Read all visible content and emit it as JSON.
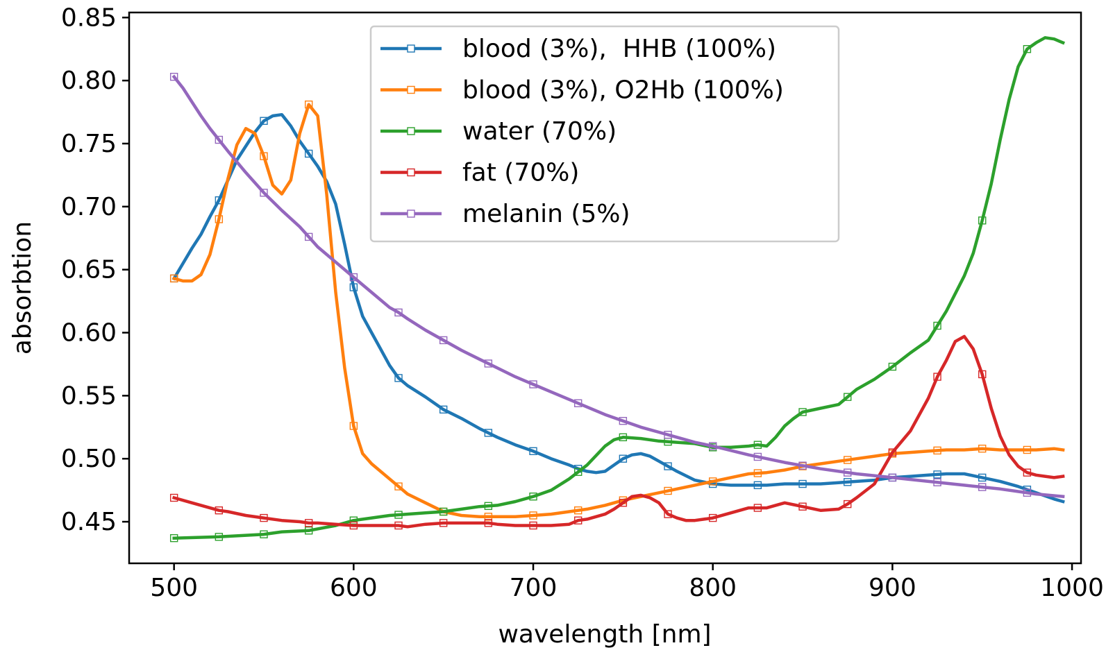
{
  "chart_data": {
    "type": "line",
    "xlabel": "wavelength [nm]",
    "ylabel": "absorbtion",
    "xlim": [
      475,
      1005
    ],
    "ylim": [
      0.417,
      0.854
    ],
    "xticks": [
      500,
      600,
      700,
      800,
      900,
      1000
    ],
    "xtick_labels": [
      "500",
      "600",
      "700",
      "800",
      "900",
      "1000"
    ],
    "yticks": [
      0.45,
      0.5,
      0.55,
      0.6,
      0.65,
      0.7,
      0.75,
      0.8,
      0.85
    ],
    "ytick_labels": [
      "0.45",
      "0.50",
      "0.55",
      "0.60",
      "0.65",
      "0.70",
      "0.75",
      "0.80",
      "0.85"
    ],
    "grid": false,
    "legend": "top-center",
    "marker_x": [
      500,
      525,
      550,
      575,
      600,
      625,
      650,
      675,
      700,
      725,
      750,
      775,
      800,
      825,
      850,
      875,
      900,
      925,
      950,
      975
    ],
    "series": [
      {
        "name": "blood (3%),  HHB (100%)",
        "color": "#1f77b4",
        "x": [
          500,
          505,
          510,
          515,
          520,
          525,
          530,
          535,
          540,
          545,
          550,
          555,
          560,
          565,
          570,
          575,
          580,
          585,
          590,
          595,
          600,
          605,
          610,
          615,
          620,
          625,
          630,
          640,
          650,
          660,
          670,
          680,
          690,
          700,
          710,
          720,
          725,
          730,
          735,
          740,
          745,
          750,
          755,
          760,
          765,
          770,
          775,
          780,
          790,
          800,
          810,
          820,
          830,
          840,
          850,
          860,
          870,
          880,
          890,
          900,
          910,
          920,
          930,
          940,
          950,
          960,
          970,
          980,
          990,
          995
        ],
        "y": [
          0.643,
          0.655,
          0.667,
          0.678,
          0.692,
          0.705,
          0.721,
          0.737,
          0.748,
          0.759,
          0.768,
          0.772,
          0.773,
          0.764,
          0.752,
          0.742,
          0.732,
          0.72,
          0.702,
          0.67,
          0.636,
          0.613,
          0.6,
          0.587,
          0.574,
          0.564,
          0.558,
          0.549,
          0.539,
          0.532,
          0.524,
          0.517,
          0.511,
          0.506,
          0.5,
          0.495,
          0.492,
          0.49,
          0.489,
          0.49,
          0.495,
          0.5,
          0.503,
          0.504,
          0.502,
          0.498,
          0.494,
          0.49,
          0.483,
          0.48,
          0.479,
          0.479,
          0.479,
          0.48,
          0.48,
          0.48,
          0.481,
          0.482,
          0.483,
          0.485,
          0.486,
          0.487,
          0.488,
          0.488,
          0.485,
          0.482,
          0.478,
          0.473,
          0.468,
          0.466
        ]
      },
      {
        "name": "blood (3%), O2Hb (100%)",
        "color": "#ff7f0e",
        "x": [
          500,
          505,
          510,
          515,
          520,
          525,
          530,
          535,
          540,
          545,
          550,
          555,
          560,
          565,
          570,
          575,
          580,
          585,
          590,
          595,
          600,
          605,
          610,
          620,
          630,
          640,
          650,
          660,
          670,
          680,
          690,
          700,
          710,
          720,
          730,
          740,
          750,
          760,
          770,
          780,
          790,
          800,
          810,
          820,
          830,
          840,
          850,
          860,
          870,
          880,
          890,
          900,
          910,
          920,
          930,
          940,
          950,
          960,
          970,
          980,
          990,
          995
        ],
        "y": [
          0.643,
          0.641,
          0.641,
          0.646,
          0.662,
          0.69,
          0.722,
          0.749,
          0.762,
          0.758,
          0.74,
          0.717,
          0.71,
          0.721,
          0.758,
          0.781,
          0.772,
          0.71,
          0.632,
          0.572,
          0.526,
          0.504,
          0.496,
          0.484,
          0.472,
          0.465,
          0.458,
          0.455,
          0.454,
          0.454,
          0.454,
          0.455,
          0.456,
          0.458,
          0.46,
          0.463,
          0.467,
          0.47,
          0.473,
          0.476,
          0.479,
          0.482,
          0.485,
          0.488,
          0.489,
          0.491,
          0.494,
          0.496,
          0.498,
          0.5,
          0.502,
          0.504,
          0.505,
          0.506,
          0.507,
          0.507,
          0.508,
          0.507,
          0.507,
          0.507,
          0.508,
          0.507
        ]
      },
      {
        "name": "water (70%)",
        "color": "#2ca02c",
        "x": [
          500,
          525,
          550,
          560,
          575,
          590,
          600,
          610,
          620,
          630,
          640,
          650,
          660,
          670,
          680,
          690,
          700,
          710,
          720,
          730,
          740,
          745,
          750,
          760,
          770,
          780,
          790,
          800,
          810,
          820,
          825,
          830,
          835,
          840,
          845,
          850,
          860,
          870,
          880,
          890,
          900,
          910,
          920,
          930,
          940,
          945,
          950,
          955,
          960,
          965,
          970,
          975,
          980,
          985,
          990,
          995
        ],
        "y": [
          0.437,
          0.438,
          0.44,
          0.442,
          0.443,
          0.447,
          0.451,
          0.453,
          0.455,
          0.456,
          0.457,
          0.458,
          0.46,
          0.462,
          0.463,
          0.466,
          0.47,
          0.475,
          0.484,
          0.495,
          0.51,
          0.515,
          0.517,
          0.516,
          0.514,
          0.513,
          0.512,
          0.509,
          0.509,
          0.51,
          0.511,
          0.51,
          0.517,
          0.526,
          0.532,
          0.537,
          0.54,
          0.543,
          0.555,
          0.563,
          0.573,
          0.584,
          0.594,
          0.617,
          0.645,
          0.663,
          0.689,
          0.718,
          0.753,
          0.785,
          0.811,
          0.825,
          0.83,
          0.834,
          0.833,
          0.83
        ]
      },
      {
        "name": "fat (70%)",
        "color": "#d62728",
        "x": [
          500,
          510,
          520,
          525,
          530,
          540,
          550,
          560,
          570,
          575,
          580,
          590,
          600,
          610,
          620,
          625,
          630,
          640,
          650,
          660,
          670,
          675,
          680,
          690,
          700,
          710,
          720,
          725,
          730,
          740,
          745,
          750,
          755,
          760,
          765,
          770,
          775,
          780,
          785,
          790,
          800,
          810,
          820,
          825,
          830,
          840,
          850,
          860,
          870,
          875,
          880,
          890,
          900,
          910,
          920,
          925,
          930,
          935,
          940,
          945,
          950,
          955,
          960,
          965,
          970,
          975,
          980,
          985,
          990,
          995
        ],
        "y": [
          0.469,
          0.465,
          0.461,
          0.459,
          0.458,
          0.455,
          0.453,
          0.451,
          0.45,
          0.449,
          0.449,
          0.448,
          0.447,
          0.447,
          0.447,
          0.447,
          0.446,
          0.448,
          0.449,
          0.449,
          0.449,
          0.449,
          0.448,
          0.447,
          0.447,
          0.447,
          0.448,
          0.451,
          0.452,
          0.456,
          0.46,
          0.465,
          0.47,
          0.471,
          0.469,
          0.465,
          0.456,
          0.453,
          0.451,
          0.451,
          0.453,
          0.457,
          0.461,
          0.461,
          0.461,
          0.465,
          0.462,
          0.459,
          0.46,
          0.464,
          0.469,
          0.48,
          0.505,
          0.522,
          0.548,
          0.565,
          0.578,
          0.593,
          0.597,
          0.587,
          0.567,
          0.54,
          0.518,
          0.503,
          0.494,
          0.489,
          0.487,
          0.486,
          0.485,
          0.486
        ]
      },
      {
        "name": "melanin (5%)",
        "color": "#9467bd",
        "x": [
          500,
          505,
          510,
          515,
          520,
          525,
          530,
          540,
          550,
          560,
          570,
          575,
          580,
          590,
          600,
          610,
          620,
          625,
          630,
          640,
          650,
          660,
          670,
          680,
          690,
          700,
          710,
          720,
          730,
          740,
          750,
          760,
          770,
          780,
          790,
          800,
          820,
          840,
          860,
          880,
          900,
          920,
          940,
          960,
          980,
          995
        ],
        "y": [
          0.803,
          0.794,
          0.783,
          0.772,
          0.762,
          0.753,
          0.744,
          0.727,
          0.711,
          0.697,
          0.684,
          0.676,
          0.668,
          0.656,
          0.644,
          0.632,
          0.62,
          0.616,
          0.611,
          0.602,
          0.594,
          0.586,
          0.579,
          0.572,
          0.565,
          0.559,
          0.553,
          0.547,
          0.541,
          0.535,
          0.53,
          0.525,
          0.521,
          0.517,
          0.513,
          0.51,
          0.503,
          0.497,
          0.492,
          0.488,
          0.485,
          0.482,
          0.479,
          0.476,
          0.472,
          0.47
        ]
      }
    ]
  }
}
